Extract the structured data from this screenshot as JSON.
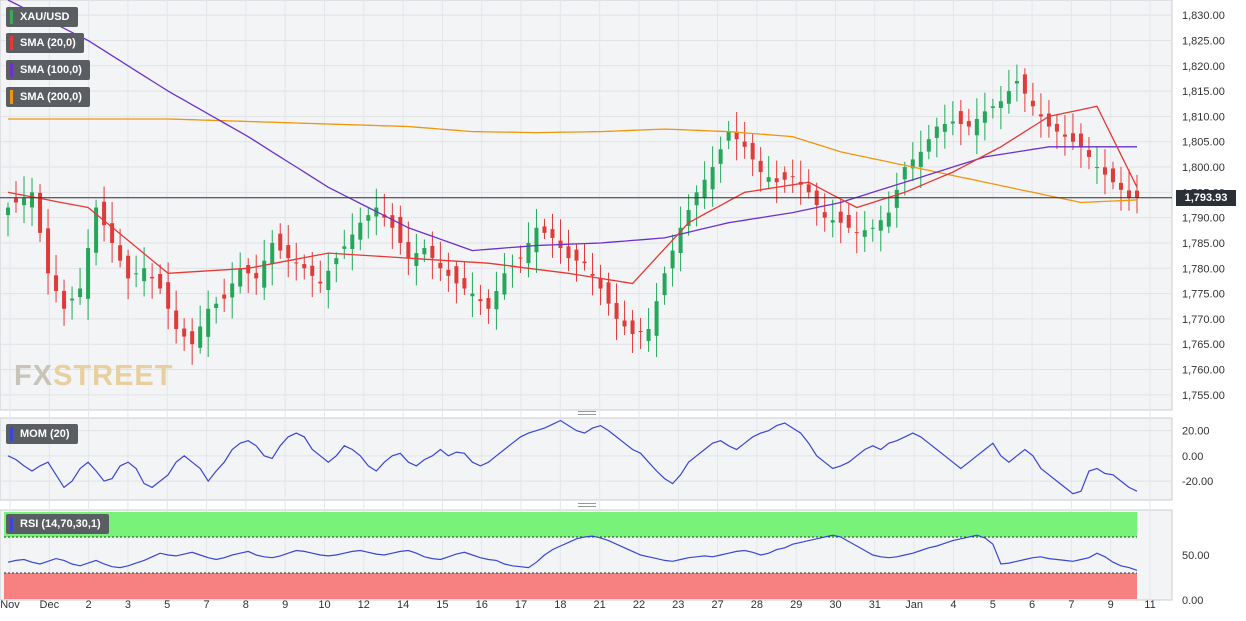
{
  "legend": {
    "symbol": "XAU/USD",
    "sma20": "SMA (20,0)",
    "sma100": "SMA (100,0)",
    "sma200": "SMA (200,0)",
    "mom": "MOM (20)",
    "rsi": "RSI (14,70,30,1)"
  },
  "watermark": {
    "fx": "FX",
    "street": "STREET"
  },
  "current_price_label": "1,793.93",
  "colors": {
    "bull": "#26a65b",
    "bear": "#e03b3b",
    "sma20": "#e53935",
    "sma100": "#6a32c9",
    "sma200": "#f0960e",
    "mom": "#3a46d4",
    "rsi": "#3a46d4",
    "rsi_overbought_zone": "#79f279",
    "rsi_oversold_zone": "#f78181",
    "symbol_stripe": "#3fa55b"
  },
  "chart_data": [
    {
      "type": "candlestick",
      "symbol": "XAU/USD",
      "x_tick_labels": [
        "Nov",
        "Dec",
        "2",
        "3",
        "5",
        "7",
        "8",
        "9",
        "10",
        "12",
        "14",
        "15",
        "16",
        "17",
        "18",
        "21",
        "22",
        "23",
        "27",
        "28",
        "29",
        "30",
        "31",
        "Jan",
        "4",
        "5",
        "6",
        "7",
        "9",
        "11"
      ],
      "y_ticks": [
        1755,
        1760,
        1765,
        1770,
        1775,
        1780,
        1785,
        1790,
        1795,
        1800,
        1805,
        1810,
        1815,
        1820,
        1825,
        1830
      ],
      "y_tick_labels": [
        "1,755.00",
        "1,760.00",
        "1,765.00",
        "1,770.00",
        "1,775.00",
        "1,780.00",
        "1,785.00",
        "1,790.00",
        "1,795.00",
        "1,800.00",
        "1,805.00",
        "1,810.00",
        "1,815.00",
        "1,820.00",
        "1,825.00",
        "1,830.00"
      ],
      "ylim": [
        1752,
        1833
      ],
      "bar_count": 142,
      "last_price": 1793.93,
      "close_path": [
        [
          0,
          1792
        ],
        [
          3,
          1795
        ],
        [
          5,
          1779
        ],
        [
          7,
          1772
        ],
        [
          9,
          1776
        ],
        [
          11,
          1792
        ],
        [
          13,
          1785
        ],
        [
          15,
          1778
        ],
        [
          17,
          1780
        ],
        [
          19,
          1776
        ],
        [
          21,
          1768
        ],
        [
          23,
          1765
        ],
        [
          25,
          1772
        ],
        [
          27,
          1774
        ],
        [
          29,
          1780
        ],
        [
          31,
          1778
        ],
        [
          33,
          1785
        ],
        [
          35,
          1782
        ],
        [
          37,
          1780
        ],
        [
          39,
          1777
        ],
        [
          41,
          1782
        ],
        [
          44,
          1789
        ],
        [
          46,
          1792
        ],
        [
          48,
          1788
        ],
        [
          50,
          1782
        ],
        [
          52,
          1784
        ],
        [
          54,
          1780
        ],
        [
          56,
          1777
        ],
        [
          58,
          1775
        ],
        [
          60,
          1772
        ],
        [
          62,
          1779
        ],
        [
          64,
          1782
        ],
        [
          66,
          1788
        ],
        [
          68,
          1786
        ],
        [
          70,
          1782
        ],
        [
          72,
          1781
        ],
        [
          74,
          1776
        ],
        [
          76,
          1770
        ],
        [
          78,
          1767
        ],
        [
          80,
          1768
        ],
        [
          82,
          1779
        ],
        [
          84,
          1788
        ],
        [
          86,
          1795
        ],
        [
          88,
          1800
        ],
        [
          90,
          1807
        ],
        [
          92,
          1804
        ],
        [
          94,
          1799
        ],
        [
          96,
          1797
        ],
        [
          98,
          1798
        ],
        [
          100,
          1795
        ],
        [
          102,
          1790
        ],
        [
          104,
          1789
        ],
        [
          106,
          1787
        ],
        [
          108,
          1788
        ],
        [
          110,
          1791
        ],
        [
          112,
          1800
        ],
        [
          114,
          1803
        ],
        [
          116,
          1808
        ],
        [
          118,
          1809
        ],
        [
          120,
          1808
        ],
        [
          122,
          1811
        ],
        [
          124,
          1813
        ],
        [
          126,
          1817
        ],
        [
          128,
          1812
        ],
        [
          130,
          1808
        ],
        [
          132,
          1806
        ],
        [
          134,
          1804
        ],
        [
          136,
          1800
        ],
        [
          138,
          1797
        ],
        [
          140,
          1794
        ],
        [
          141,
          1793.93
        ]
      ],
      "sma20_path": [
        [
          0,
          1795
        ],
        [
          10,
          1792
        ],
        [
          20,
          1779
        ],
        [
          30,
          1780
        ],
        [
          40,
          1783
        ],
        [
          50,
          1782
        ],
        [
          60,
          1781
        ],
        [
          70,
          1779
        ],
        [
          78,
          1777
        ],
        [
          85,
          1789
        ],
        [
          92,
          1795
        ],
        [
          100,
          1797
        ],
        [
          106,
          1792
        ],
        [
          112,
          1795
        ],
        [
          118,
          1799
        ],
        [
          124,
          1804
        ],
        [
          130,
          1810
        ],
        [
          136,
          1812
        ],
        [
          141,
          1796
        ]
      ],
      "sma100_path": [
        [
          0,
          1833
        ],
        [
          10,
          1825
        ],
        [
          20,
          1815
        ],
        [
          30,
          1806
        ],
        [
          40,
          1796
        ],
        [
          50,
          1788
        ],
        [
          58,
          1783.5
        ],
        [
          66,
          1784.5
        ],
        [
          74,
          1785
        ],
        [
          82,
          1786
        ],
        [
          90,
          1789
        ],
        [
          98,
          1791
        ],
        [
          104,
          1793
        ],
        [
          110,
          1796
        ],
        [
          116,
          1799
        ],
        [
          122,
          1802
        ],
        [
          130,
          1804
        ],
        [
          141,
          1804
        ]
      ],
      "sma200_path": [
        [
          0,
          1809.5
        ],
        [
          10,
          1809.5
        ],
        [
          20,
          1809.5
        ],
        [
          30,
          1809
        ],
        [
          40,
          1808.5
        ],
        [
          50,
          1808
        ],
        [
          58,
          1807
        ],
        [
          66,
          1806.8
        ],
        [
          74,
          1807
        ],
        [
          82,
          1807.5
        ],
        [
          90,
          1807
        ],
        [
          98,
          1806
        ],
        [
          104,
          1803
        ],
        [
          110,
          1801
        ],
        [
          116,
          1799
        ],
        [
          122,
          1797
        ],
        [
          128,
          1795
        ],
        [
          134,
          1793
        ],
        [
          141,
          1793.5
        ]
      ]
    },
    {
      "type": "line",
      "name": "MOM (20)",
      "y_ticks": [
        20,
        0,
        -20
      ],
      "y_tick_labels": [
        "20.00",
        "0.00",
        "-20.00"
      ],
      "ylim": [
        -35,
        30
      ],
      "values": [
        0,
        -3,
        -8,
        -12,
        -8,
        -5,
        -15,
        -25,
        -20,
        -10,
        -5,
        -12,
        -20,
        -18,
        -8,
        -5,
        -10,
        -22,
        -25,
        -20,
        -15,
        -5,
        0,
        -5,
        -10,
        -20,
        -12,
        -5,
        5,
        10,
        12,
        8,
        0,
        -2,
        8,
        15,
        18,
        15,
        5,
        0,
        -5,
        0,
        8,
        5,
        0,
        -8,
        -12,
        -5,
        0,
        2,
        -5,
        -8,
        -3,
        0,
        5,
        0,
        3,
        2,
        -5,
        -8,
        -5,
        0,
        5,
        10,
        15,
        18,
        20,
        22,
        25,
        28,
        24,
        20,
        18,
        22,
        24,
        20,
        15,
        10,
        5,
        2,
        -5,
        -12,
        -18,
        -22,
        -15,
        -5,
        0,
        5,
        10,
        12,
        8,
        5,
        10,
        15,
        18,
        20,
        24,
        26,
        22,
        18,
        10,
        0,
        -5,
        -10,
        -8,
        -5,
        0,
        5,
        8,
        5,
        10,
        12,
        15,
        18,
        15,
        10,
        5,
        0,
        -5,
        -10,
        -5,
        0,
        5,
        10,
        0,
        -5,
        0,
        5,
        0,
        -10,
        -15,
        -20,
        -25,
        -30,
        -28,
        -12,
        -10,
        -14,
        -15,
        -20,
        -25,
        -28
      ]
    },
    {
      "type": "line",
      "name": "RSI (14,70,30,1)",
      "y_ticks": [
        100,
        50,
        0
      ],
      "y_tick_labels": [
        "100.00",
        "50.00",
        "0.00"
      ],
      "overbought": 70,
      "oversold": 30,
      "ylim": [
        0,
        100
      ],
      "values": [
        42,
        44,
        45,
        42,
        40,
        43,
        46,
        44,
        40,
        38,
        41,
        44,
        40,
        37,
        36,
        38,
        41,
        44,
        48,
        52,
        50,
        49,
        51,
        53,
        50,
        47,
        45,
        47,
        50,
        52,
        54,
        50,
        48,
        47,
        49,
        52,
        55,
        54,
        52,
        50,
        49,
        50,
        52,
        54,
        55,
        53,
        51,
        50,
        52,
        54,
        55,
        52,
        48,
        46,
        45,
        48,
        51,
        53,
        50,
        47,
        45,
        44,
        40,
        38,
        37,
        36,
        42,
        50,
        56,
        60,
        64,
        68,
        70,
        71,
        69,
        66,
        62,
        58,
        54,
        50,
        48,
        46,
        44,
        43,
        45,
        47,
        48,
        49,
        48,
        50,
        52,
        54,
        55,
        53,
        50,
        52,
        56,
        58,
        62,
        64,
        66,
        68,
        70,
        72,
        70,
        65,
        60,
        55,
        50,
        48,
        47,
        48,
        50,
        52,
        55,
        58,
        60,
        63,
        66,
        68,
        70,
        72,
        69,
        62,
        40,
        41,
        43,
        45,
        47,
        48,
        46,
        45,
        44,
        43,
        45,
        47,
        52,
        48,
        42,
        38,
        36,
        33
      ]
    }
  ]
}
